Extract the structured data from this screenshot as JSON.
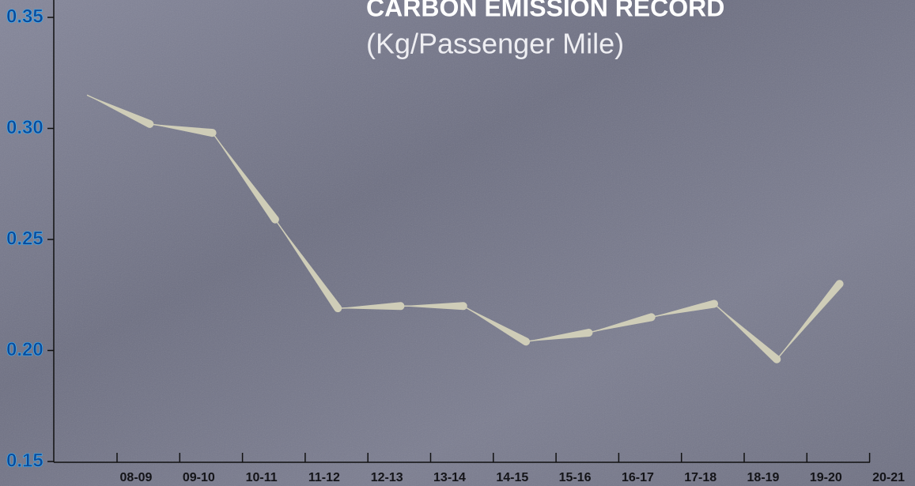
{
  "chart_data": {
    "type": "line",
    "title": "CARBON EMISSION RECORD",
    "subtitle": "(Kg/Passenger Mile)",
    "categories": [
      "08-09",
      "09-10",
      "10-11",
      "11-12",
      "12-13",
      "13-14",
      "14-15",
      "15-16",
      "16-17",
      "17-18",
      "18-19",
      "19-20",
      "20-21"
    ],
    "values": [
      0.315,
      0.302,
      0.298,
      0.259,
      0.219,
      0.22,
      0.22,
      0.204,
      0.208,
      0.215,
      0.221,
      0.196,
      0.23
    ],
    "color": "#cfcdb8",
    "ylim": [
      0.15,
      0.35
    ],
    "yticks": [
      {
        "value": 0.15,
        "label": "0.15"
      },
      {
        "value": 0.2,
        "label": "0.20"
      },
      {
        "value": 0.25,
        "label": "0.25"
      },
      {
        "value": 0.3,
        "label": "0.30"
      },
      {
        "value": 0.35,
        "label": "0.35"
      }
    ]
  }
}
